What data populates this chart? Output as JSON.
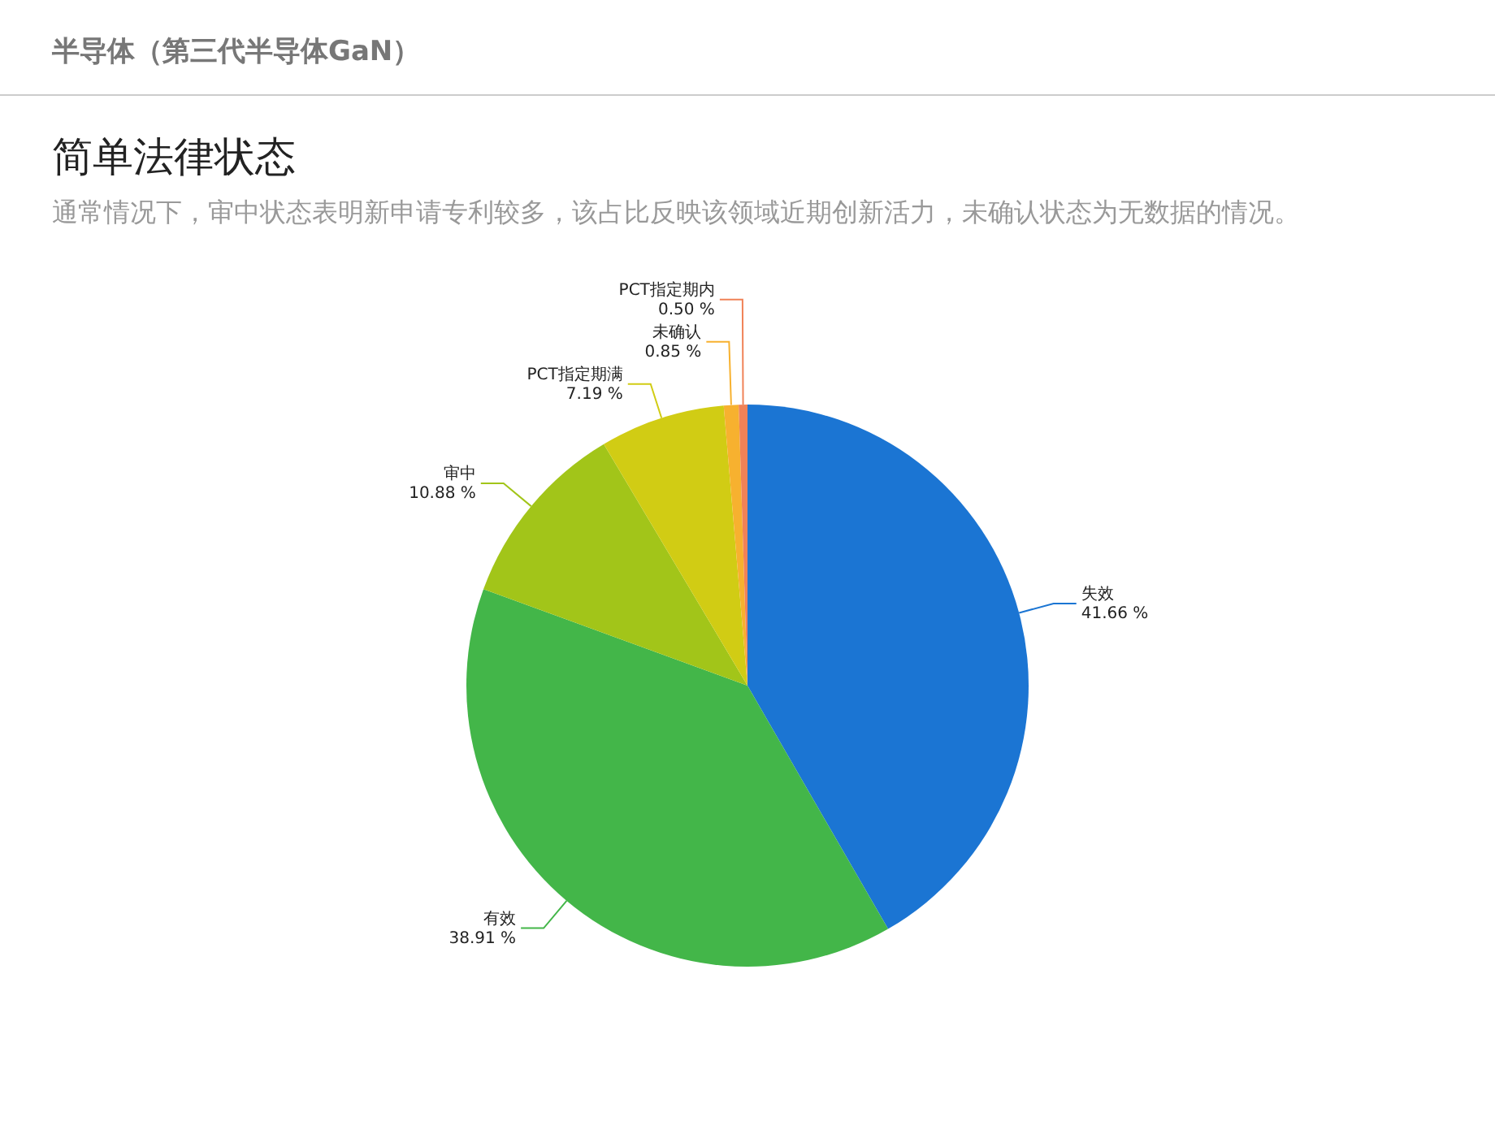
{
  "chart_data": {
    "type": "pie",
    "title": "简单法律状态",
    "subtitle": "通常情况下，审中状态表明新申请专利较多，该占比反映该领域近期创新活力，未确认状态为无数据的情况。",
    "annotations": [
      "半导体（第三代半导体GaN）"
    ],
    "categories": [
      "失效",
      "有效",
      "审中",
      "PCT指定期满",
      "未确认",
      "PCT指定期内"
    ],
    "values": [
      41.66,
      38.91,
      10.88,
      7.19,
      0.85,
      0.5
    ],
    "value_labels": [
      "41.66 %",
      "38.91 %",
      "10.88 %",
      "7.19 %",
      "0.85 %",
      "0.50 %"
    ],
    "colors": [
      "#1b75d3",
      "#43b649",
      "#a2c519",
      "#d1cc14",
      "#f7b12f",
      "#f08257"
    ]
  }
}
